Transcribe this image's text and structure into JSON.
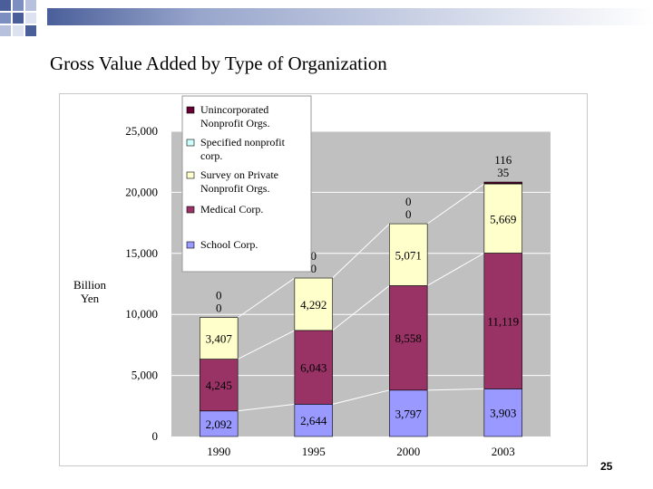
{
  "slide": {
    "title": "Gross Value Added by Type of Organization",
    "page_number": "25"
  },
  "colors": {
    "unincorporated": "#660033",
    "specified": "#ccffff",
    "survey": "#ffffcc",
    "medical": "#993366",
    "school": "#9999ff",
    "plot_bg": "#c0c0c0"
  },
  "chart_data": {
    "type": "bar",
    "stacked": true,
    "title": "",
    "xlabel": "",
    "ylabel": [
      "Billion",
      "Yen"
    ],
    "ylim": [
      0,
      25000
    ],
    "yticks": [
      0,
      5000,
      10000,
      15000,
      20000,
      25000
    ],
    "ytick_labels": [
      "0",
      "5,000",
      "10,000",
      "15,000",
      "20,000",
      "25,000"
    ],
    "categories": [
      "1990",
      "1995",
      "2000",
      "2003"
    ],
    "series": [
      {
        "name": "School Corp.",
        "color_key": "school",
        "values": [
          2092,
          2644,
          3797,
          3903
        ],
        "labels": [
          "2,092",
          "2,644",
          "3,797",
          "3,903"
        ]
      },
      {
        "name": "Medical Corp.",
        "color_key": "medical",
        "values": [
          4245,
          6043,
          8558,
          11119
        ],
        "labels": [
          "4,245",
          "6,043",
          "8,558",
          "11,119"
        ]
      },
      {
        "name": "Survey on Private Nonprofit Orgs.",
        "color_key": "survey",
        "values": [
          3407,
          4292,
          5071,
          5669
        ],
        "labels": [
          "3,407",
          "4,292",
          "5,071",
          "5,669"
        ]
      },
      {
        "name": "Specified nonprofit corp.",
        "color_key": "specified",
        "values": [
          0,
          0,
          0,
          35
        ],
        "labels": [
          "0",
          "0",
          "0",
          "35"
        ]
      },
      {
        "name": "Unincorporated Nonprofit Orgs.",
        "color_key": "unincorporated",
        "values": [
          0,
          0,
          0,
          116
        ],
        "labels": [
          "0",
          "0",
          "0",
          "116"
        ]
      }
    ],
    "legend": {
      "placement": "top-left",
      "entries": [
        {
          "color_key": "unincorporated",
          "lines": [
            "Unincorporated",
            "Nonprofit Orgs."
          ]
        },
        {
          "color_key": "specified",
          "lines": [
            "Specified nonprofit",
            "corp."
          ]
        },
        {
          "color_key": "survey",
          "lines": [
            "Survey on Private",
            "Nonprofit Orgs."
          ]
        },
        {
          "color_key": "medical",
          "lines": [
            "Medical Corp."
          ]
        },
        {
          "color_key": "school",
          "lines": [
            "School Corp."
          ]
        }
      ]
    }
  }
}
